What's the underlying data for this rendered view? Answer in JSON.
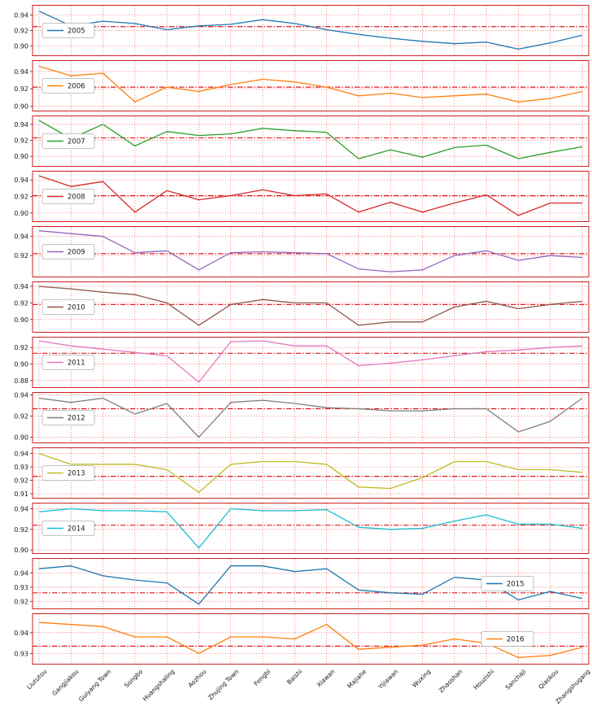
{
  "chart_data": {
    "type": "line",
    "title": "",
    "xlabel": "",
    "ylabel": "",
    "grid": true,
    "grid_color": "#ee2222",
    "grid_style": "dotted",
    "mean_line_style": "dashdot",
    "mean_line_color": "#e01818",
    "spine_color": "#cc2222",
    "xlabels_rotation": 45,
    "categories": [
      "Liututou",
      "Gangjiakou",
      "Guiyang Town",
      "Songbo",
      "Huangshaling",
      "Aozhou",
      "Zhujing Town",
      "Fengbi",
      "Baishi",
      "Xiawan",
      "Majiahe",
      "Yijiawan",
      "Wuxing",
      "Zhaoshan",
      "Houzishi",
      "Sanchaji",
      "Qiaokou",
      "Zhangshugang"
    ],
    "panels": [
      {
        "year": "2005",
        "color": "#1f77b4",
        "legend_side": "left",
        "ticks": [
          0.9,
          0.92,
          0.94
        ],
        "ylim": [
          0.888,
          0.952
        ],
        "mean_line": 0.925,
        "values": [
          0.945,
          0.926,
          0.932,
          0.929,
          0.921,
          0.926,
          0.928,
          0.934,
          0.929,
          0.921,
          0.915,
          0.91,
          0.906,
          0.903,
          0.905,
          0.896,
          0.904,
          0.914
        ]
      },
      {
        "year": "2006",
        "color": "#ff7f0e",
        "legend_side": "left",
        "ticks": [
          0.9,
          0.92,
          0.94
        ],
        "ylim": [
          0.895,
          0.952
        ],
        "mean_line": 0.922,
        "values": [
          0.946,
          0.935,
          0.938,
          0.905,
          0.922,
          0.917,
          0.925,
          0.931,
          0.928,
          0.922,
          0.912,
          0.915,
          0.91,
          0.912,
          0.914,
          0.905,
          0.909,
          0.917
        ]
      },
      {
        "year": "2007",
        "color": "#2ca02c",
        "legend_side": "left",
        "ticks": [
          0.9,
          0.92,
          0.94
        ],
        "ylim": [
          0.888,
          0.95
        ],
        "mean_line": 0.923,
        "values": [
          0.945,
          0.922,
          0.94,
          0.913,
          0.931,
          0.926,
          0.928,
          0.935,
          0.932,
          0.93,
          0.897,
          0.908,
          0.899,
          0.911,
          0.914,
          0.897,
          0.905,
          0.912
        ]
      },
      {
        "year": "2008",
        "color": "#d62728",
        "legend_side": "left",
        "ticks": [
          0.9,
          0.92,
          0.94
        ],
        "ylim": [
          0.89,
          0.95
        ],
        "mean_line": 0.921,
        "values": [
          0.945,
          0.932,
          0.938,
          0.901,
          0.927,
          0.916,
          0.921,
          0.928,
          0.921,
          0.923,
          0.901,
          0.913,
          0.901,
          0.912,
          0.922,
          0.897,
          0.912,
          0.912
        ]
      },
      {
        "year": "2009",
        "color": "#9467bd",
        "legend_side": "left",
        "ticks": [
          0.92,
          0.94
        ],
        "ylim": [
          0.898,
          0.95
        ],
        "mean_line": 0.922,
        "values": [
          0.946,
          0.943,
          0.94,
          0.923,
          0.925,
          0.905,
          0.923,
          0.924,
          0.923,
          0.922,
          0.906,
          0.903,
          0.905,
          0.92,
          0.925,
          0.915,
          0.92,
          0.918
        ]
      },
      {
        "year": "2010",
        "color": "#8c564b",
        "legend_side": "left",
        "ticks": [
          0.9,
          0.92,
          0.94
        ],
        "ylim": [
          0.885,
          0.945
        ],
        "mean_line": 0.918,
        "values": [
          0.94,
          0.937,
          0.933,
          0.93,
          0.92,
          0.893,
          0.918,
          0.924,
          0.92,
          0.92,
          0.893,
          0.897,
          0.897,
          0.915,
          0.922,
          0.913,
          0.918,
          0.922
        ]
      },
      {
        "year": "2011",
        "color": "#e377c2",
        "legend_side": "left",
        "ticks": [
          0.88,
          0.9,
          0.92
        ],
        "ylim": [
          0.872,
          0.932
        ],
        "mean_line": 0.913,
        "values": [
          0.928,
          0.922,
          0.918,
          0.914,
          0.91,
          0.878,
          0.927,
          0.928,
          0.922,
          0.922,
          0.898,
          0.901,
          0.905,
          0.91,
          0.915,
          0.917,
          0.92,
          0.922
        ]
      },
      {
        "year": "2012",
        "color": "#7f7f7f",
        "legend_side": "left",
        "ticks": [
          0.9,
          0.92,
          0.94
        ],
        "ylim": [
          0.895,
          0.942
        ],
        "mean_line": 0.927,
        "values": [
          0.937,
          0.933,
          0.937,
          0.922,
          0.932,
          0.9,
          0.933,
          0.935,
          0.932,
          0.928,
          0.927,
          0.925,
          0.925,
          0.927,
          0.927,
          0.905,
          0.915,
          0.937
        ]
      },
      {
        "year": "2013",
        "color": "#bcbd22",
        "legend_side": "left",
        "ticks": [
          0.91,
          0.92,
          0.93,
          0.94
        ],
        "ylim": [
          0.907,
          0.944
        ],
        "mean_line": 0.923,
        "values": [
          0.94,
          0.932,
          0.932,
          0.932,
          0.928,
          0.911,
          0.932,
          0.934,
          0.934,
          0.932,
          0.915,
          0.914,
          0.922,
          0.934,
          0.934,
          0.928,
          0.928,
          0.926
        ]
      },
      {
        "year": "2014",
        "color": "#17becf",
        "legend_side": "left",
        "ticks": [
          0.9,
          0.92,
          0.94
        ],
        "ylim": [
          0.897,
          0.945
        ],
        "mean_line": 0.924,
        "values": [
          0.937,
          0.94,
          0.938,
          0.938,
          0.937,
          0.902,
          0.94,
          0.938,
          0.938,
          0.939,
          0.922,
          0.92,
          0.921,
          0.928,
          0.934,
          0.925,
          0.925,
          0.921
        ]
      },
      {
        "year": "2015",
        "color": "#1f77b4",
        "legend_side": "right",
        "ticks": [
          0.92,
          0.93,
          0.94
        ],
        "ylim": [
          0.915,
          0.95
        ],
        "mean_line": 0.926,
        "values": [
          0.943,
          0.945,
          0.938,
          0.935,
          0.933,
          0.918,
          0.945,
          0.945,
          0.941,
          0.943,
          0.928,
          0.926,
          0.925,
          0.937,
          0.935,
          0.921,
          0.927,
          0.922
        ]
      },
      {
        "year": "2016",
        "color": "#ff7f0e",
        "legend_side": "right",
        "ticks": [
          0.93,
          0.94
        ],
        "ylim": [
          0.925,
          0.949
        ],
        "mean_line": 0.9335,
        "values": [
          0.945,
          0.944,
          0.943,
          0.938,
          0.938,
          0.93,
          0.938,
          0.938,
          0.937,
          0.944,
          0.932,
          0.933,
          0.934,
          0.937,
          0.935,
          0.928,
          0.929,
          0.933
        ]
      }
    ]
  }
}
